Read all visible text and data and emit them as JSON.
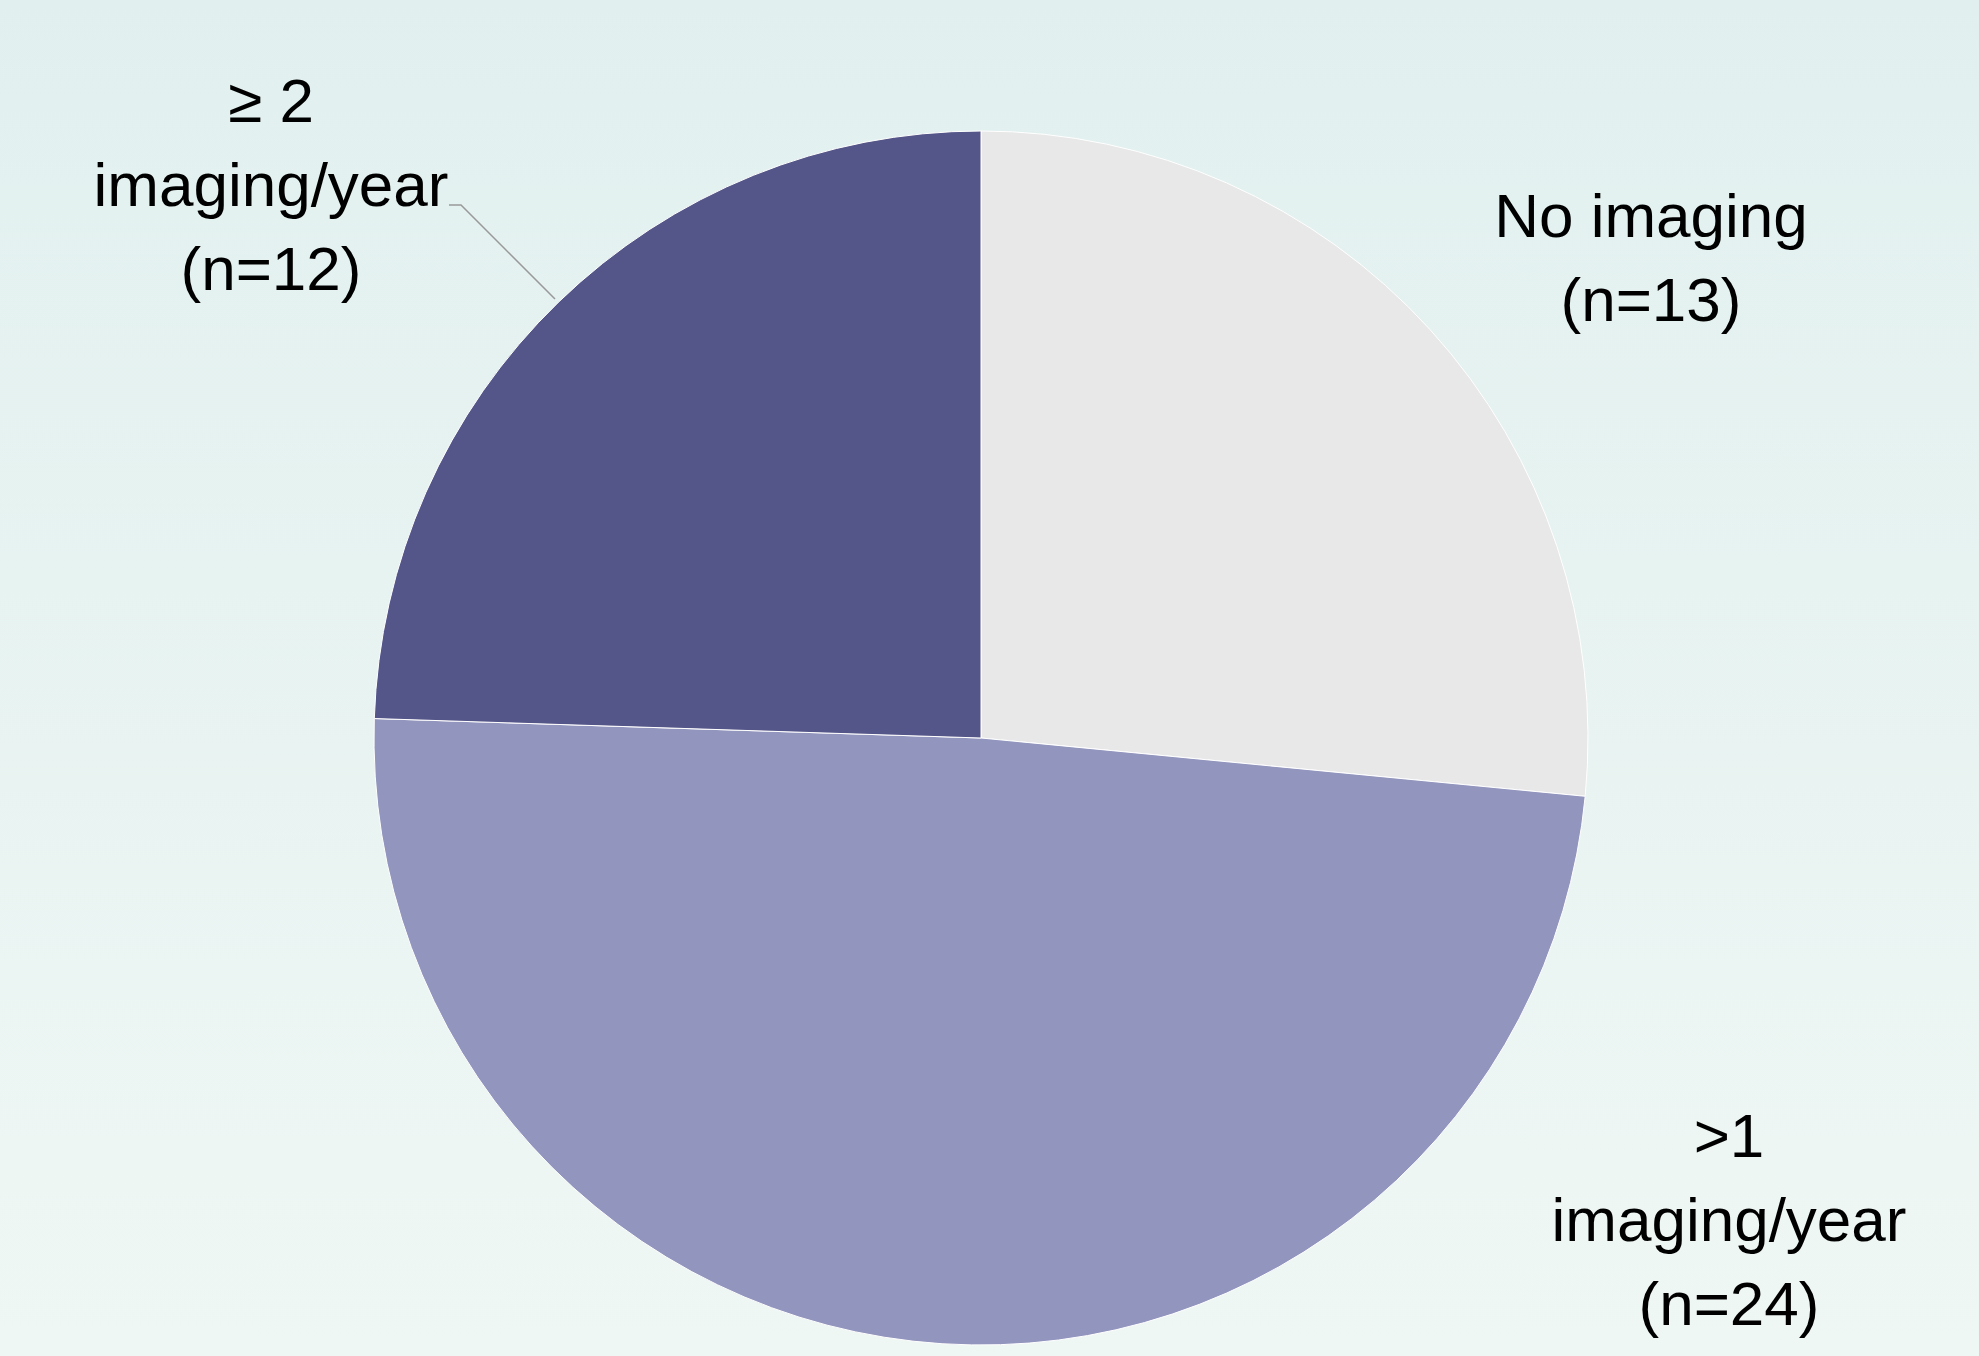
{
  "chart_data": {
    "type": "pie",
    "categories": [
      "No imaging (n=13)",
      ">1 imaging/year (n=24)",
      "≥ 2 imaging/year (n=12)"
    ],
    "values": [
      13,
      24,
      12
    ],
    "colors": [
      "#e8e8e8",
      "#9295bd",
      "#545589"
    ]
  }
}
